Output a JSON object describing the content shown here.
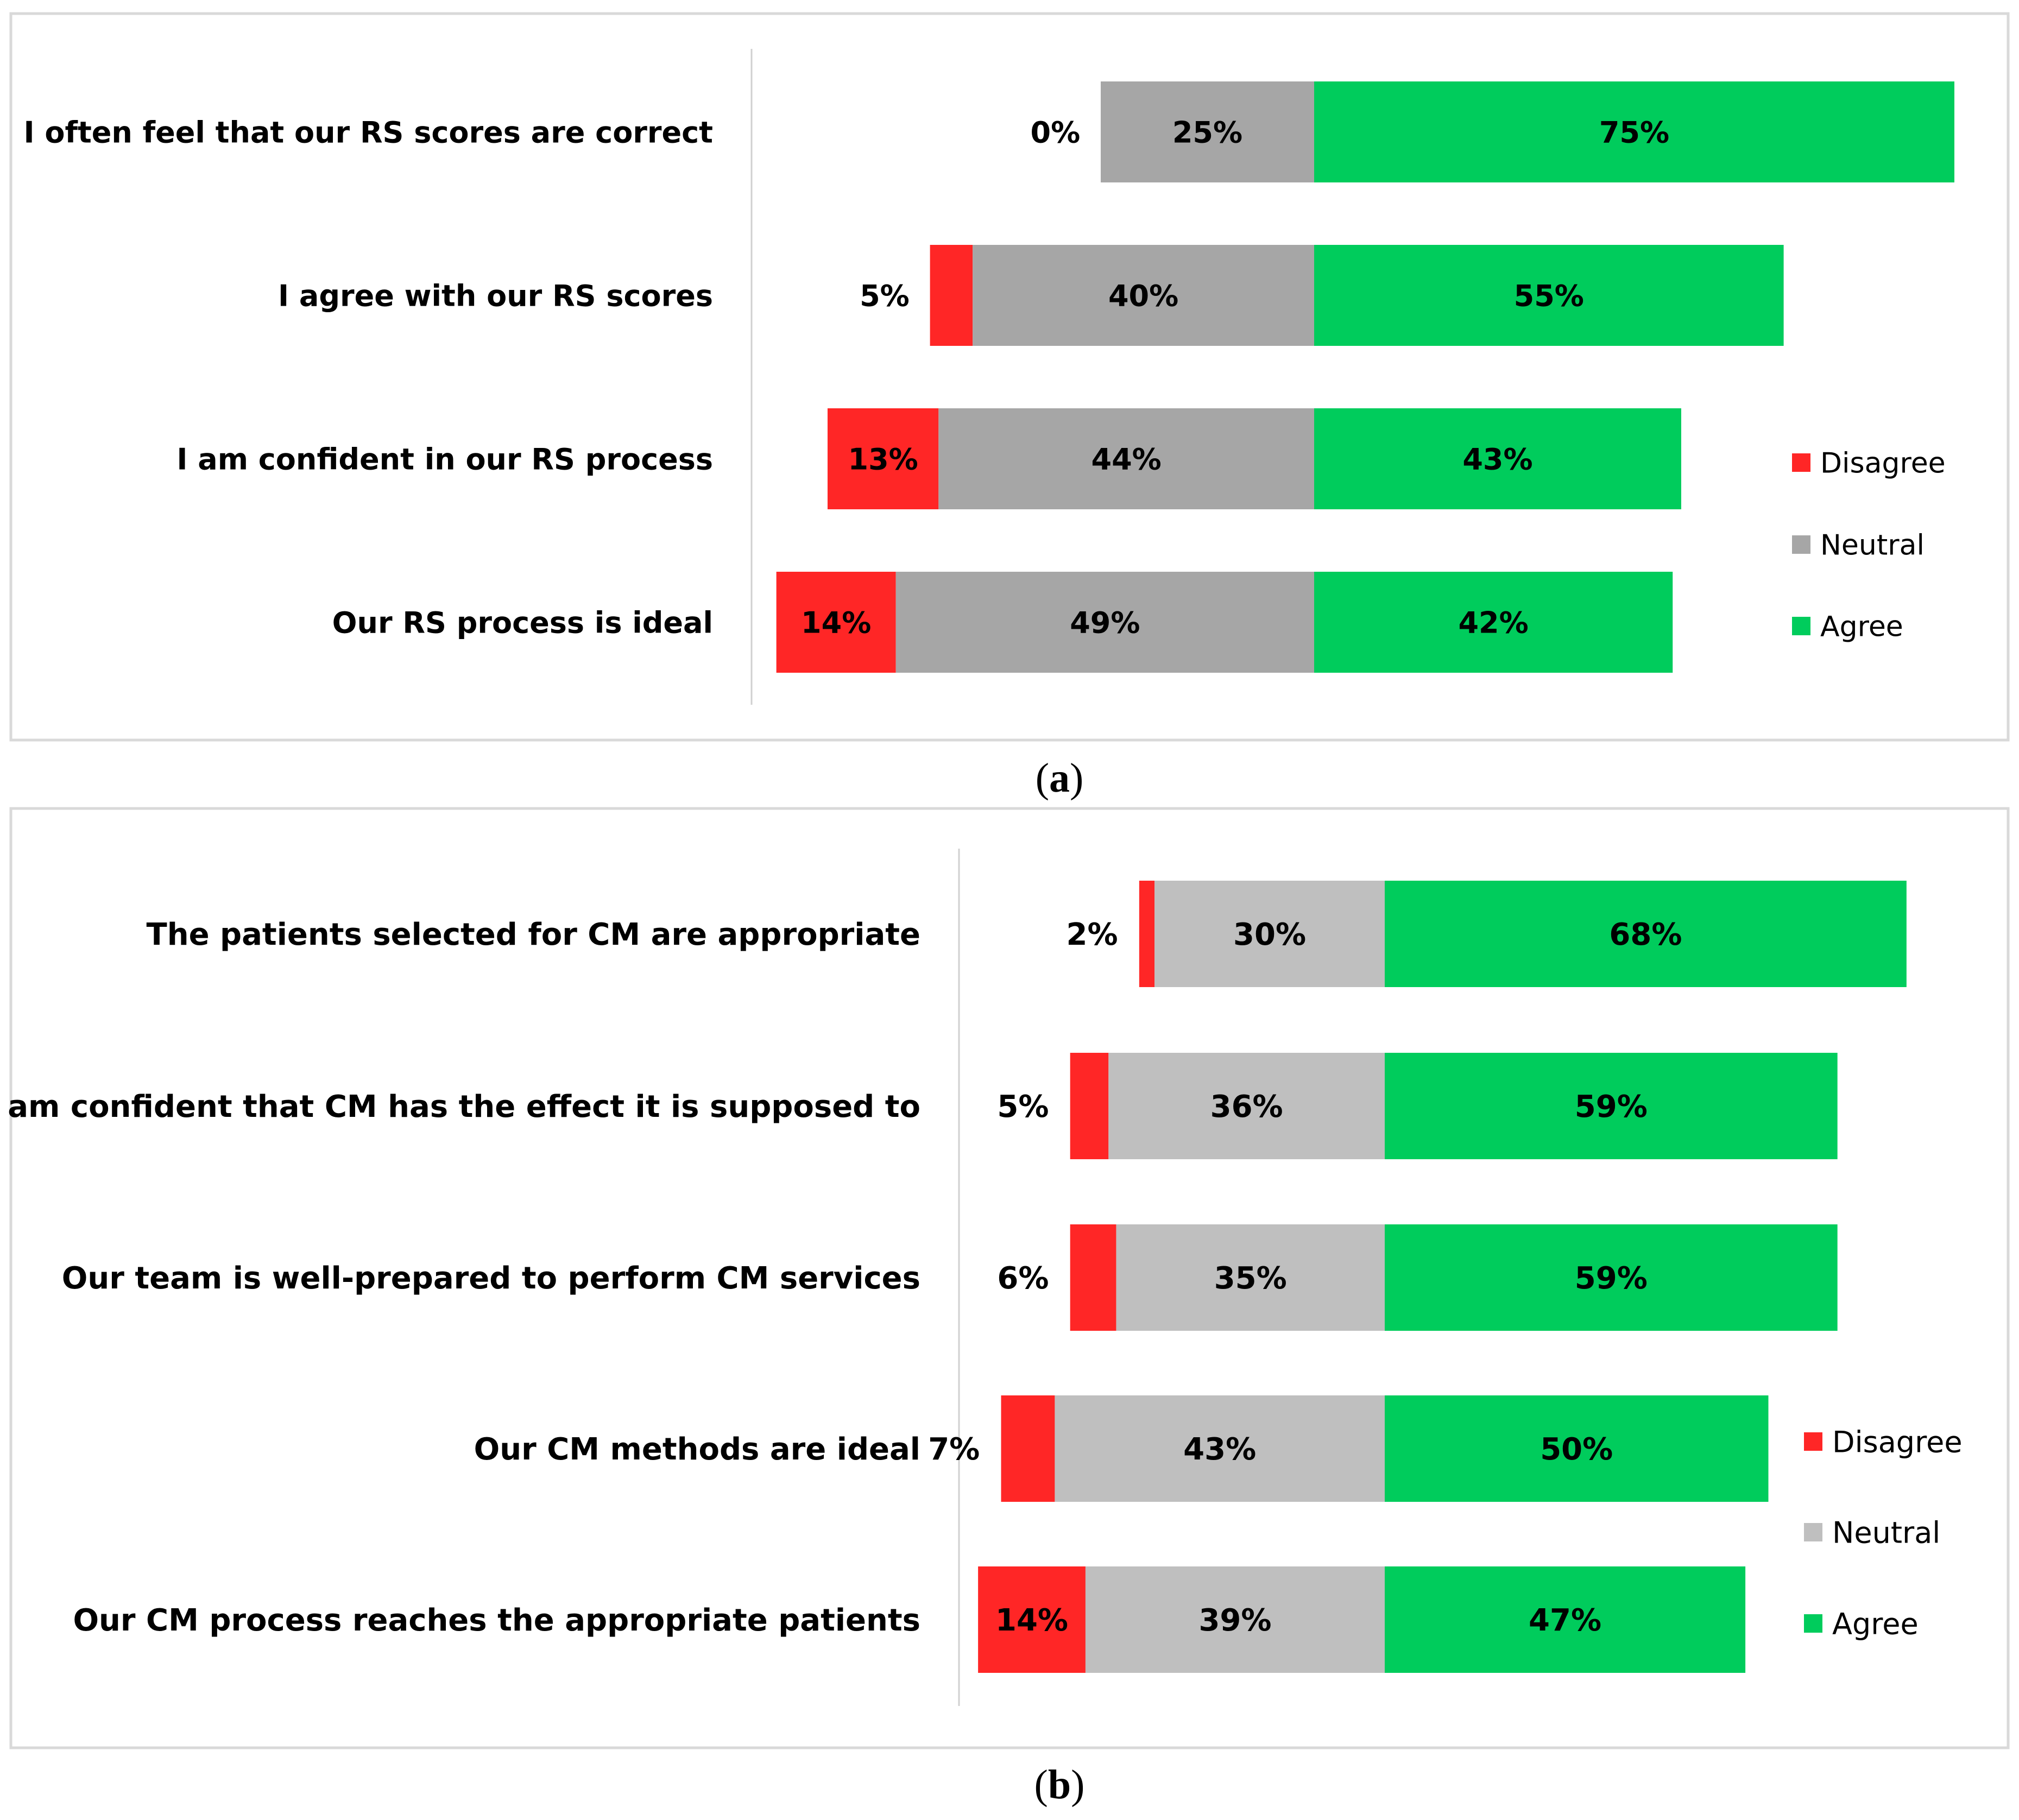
{
  "colors": {
    "disagree": "#ff2626",
    "neutral_a": "#a6a6a6",
    "neutral_b": "#bfbfbf",
    "agree": "#00cc5c",
    "frame": "#d9d9d9",
    "axis": "#d0d0d0",
    "text": "#000000"
  },
  "chart_data": [
    {
      "type": "bar",
      "orientation": "horizontal",
      "stacking": "diverging",
      "panel": "(a)",
      "caption_letter": "a",
      "categories": [
        "I often feel that our RS scores are correct",
        "I agree with our RS scores",
        "I am confident in our RS process",
        "Our RS process is ideal"
      ],
      "series": [
        {
          "name": "Disagree",
          "values": [
            0,
            5,
            13,
            14
          ]
        },
        {
          "name": "Neutral",
          "values": [
            25,
            40,
            44,
            49
          ]
        },
        {
          "name": "Agree",
          "values": [
            75,
            55,
            43,
            42
          ]
        }
      ],
      "labels": {
        "Disagree": [
          "0%",
          "5%",
          "13%",
          "14%"
        ],
        "Neutral": [
          "25%",
          "40%",
          "44%",
          "49%"
        ],
        "Agree": [
          "75%",
          "55%",
          "43%",
          "42%"
        ]
      },
      "legend": [
        "Disagree",
        "Neutral",
        "Agree"
      ],
      "legend_position": "right",
      "title": "",
      "xlabel": "",
      "ylabel": ""
    },
    {
      "type": "bar",
      "orientation": "horizontal",
      "stacking": "diverging",
      "panel": "(b)",
      "caption_letter": "b",
      "categories": [
        "The patients selected for CM are appropriate",
        "I am confident that CM has the effect it is supposed to",
        "Our team is well-prepared to perform CM services",
        "Our CM methods are ideal",
        "Our CM process reaches the appropriate patients"
      ],
      "series": [
        {
          "name": "Disagree",
          "values": [
            2,
            5,
            6,
            7,
            14
          ]
        },
        {
          "name": "Neutral",
          "values": [
            30,
            36,
            35,
            43,
            39
          ]
        },
        {
          "name": "Agree",
          "values": [
            68,
            59,
            59,
            50,
            47
          ]
        }
      ],
      "labels": {
        "Disagree": [
          "2%",
          "5%",
          "6%",
          "7%",
          "14%"
        ],
        "Neutral": [
          "30%",
          "36%",
          "35%",
          "43%",
          "39%"
        ],
        "Agree": [
          "68%",
          "59%",
          "59%",
          "50%",
          "47%"
        ]
      },
      "legend": [
        "Disagree",
        "Neutral",
        "Agree"
      ],
      "legend_position": "bottom-right",
      "title": "",
      "xlabel": "",
      "ylabel": ""
    }
  ]
}
